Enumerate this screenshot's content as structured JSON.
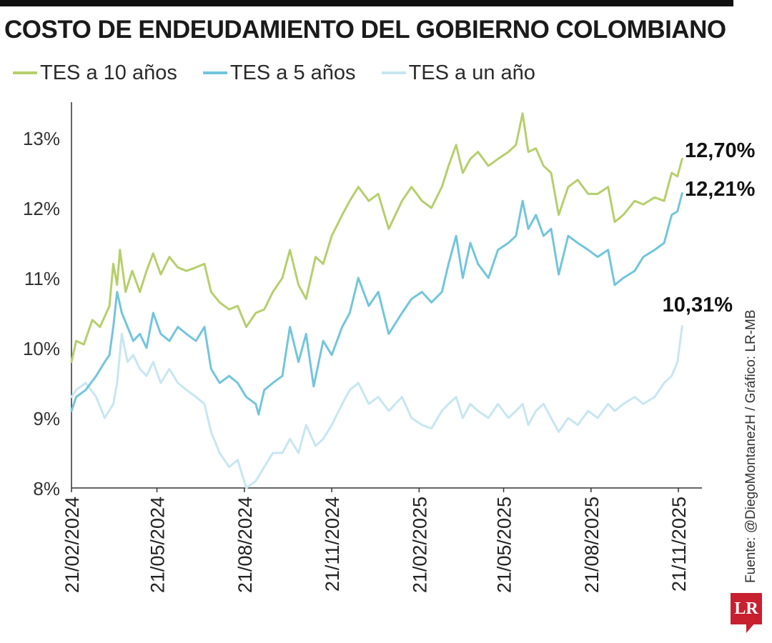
{
  "title": "COSTO DE ENDEUDAMIENTO DEL GOBIERNO COLOMBIANO",
  "source": "Fuente: @DiegoMontanezH / Gráfico: LR-MB",
  "logo_text": "LR",
  "colors": {
    "tes10": "#b5cf6b",
    "tes5": "#72c5dd",
    "tes1": "#c7e6f1",
    "axis": "#333333",
    "brand": "#c8202f"
  },
  "chart_data": {
    "type": "line",
    "title": "COSTO DE ENDEUDAMIENTO DEL GOBIERNO COLOMBIANO",
    "xlabel": "",
    "ylabel": "",
    "ylim": [
      8,
      13.5
    ],
    "y_ticks": [
      "8%",
      "9%",
      "10%",
      "11%",
      "12%",
      "13%"
    ],
    "y_tick_values": [
      8,
      9,
      10,
      11,
      12,
      13
    ],
    "x_ticks": [
      "21/02/2024",
      "21/05/2024",
      "21/08/2024",
      "21/11/2024",
      "21/02/2025",
      "21/05/2025",
      "21/08/2025",
      "21/11/2025"
    ],
    "xlim": [
      "2024-02-21",
      "2025-11-27"
    ],
    "grid": false,
    "legend_position": "top-left",
    "series": [
      {
        "name": "TES a 10 años",
        "end_label": "12,70%",
        "points": [
          [
            "2024-02-21",
            9.8
          ],
          [
            "2024-02-26",
            10.1
          ],
          [
            "2024-03-05",
            10.05
          ],
          [
            "2024-03-14",
            10.4
          ],
          [
            "2024-03-22",
            10.3
          ],
          [
            "2024-04-01",
            10.6
          ],
          [
            "2024-04-05",
            11.2
          ],
          [
            "2024-04-09",
            10.9
          ],
          [
            "2024-04-12",
            11.4
          ],
          [
            "2024-04-18",
            10.8
          ],
          [
            "2024-04-25",
            11.1
          ],
          [
            "2024-05-03",
            10.8
          ],
          [
            "2024-05-10",
            11.1
          ],
          [
            "2024-05-17",
            11.35
          ],
          [
            "2024-05-25",
            11.05
          ],
          [
            "2024-06-03",
            11.3
          ],
          [
            "2024-06-12",
            11.15
          ],
          [
            "2024-06-21",
            11.1
          ],
          [
            "2024-07-01",
            11.15
          ],
          [
            "2024-07-10",
            11.2
          ],
          [
            "2024-07-17",
            10.8
          ],
          [
            "2024-07-26",
            10.65
          ],
          [
            "2024-08-05",
            10.55
          ],
          [
            "2024-08-14",
            10.6
          ],
          [
            "2024-08-23",
            10.3
          ],
          [
            "2024-09-02",
            10.5
          ],
          [
            "2024-09-11",
            10.55
          ],
          [
            "2024-09-20",
            10.8
          ],
          [
            "2024-09-30",
            11.0
          ],
          [
            "2024-10-08",
            11.4
          ],
          [
            "2024-10-17",
            10.9
          ],
          [
            "2024-10-25",
            10.7
          ],
          [
            "2024-11-04",
            11.3
          ],
          [
            "2024-11-12",
            11.2
          ],
          [
            "2024-11-21",
            11.6
          ],
          [
            "2024-12-02",
            11.9
          ],
          [
            "2024-12-10",
            12.1
          ],
          [
            "2024-12-19",
            12.3
          ],
          [
            "2024-12-30",
            12.1
          ],
          [
            "2025-01-09",
            12.2
          ],
          [
            "2025-01-20",
            11.7
          ],
          [
            "2025-02-03",
            12.1
          ],
          [
            "2025-02-13",
            12.3
          ],
          [
            "2025-02-24",
            12.1
          ],
          [
            "2025-03-06",
            12.0
          ],
          [
            "2025-03-17",
            12.3
          ],
          [
            "2025-03-24",
            12.6
          ],
          [
            "2025-04-01",
            12.9
          ],
          [
            "2025-04-08",
            12.5
          ],
          [
            "2025-04-16",
            12.7
          ],
          [
            "2025-04-24",
            12.8
          ],
          [
            "2025-05-05",
            12.6
          ],
          [
            "2025-05-15",
            12.7
          ],
          [
            "2025-05-26",
            12.8
          ],
          [
            "2025-06-03",
            12.9
          ],
          [
            "2025-06-10",
            13.35
          ],
          [
            "2025-06-16",
            12.8
          ],
          [
            "2025-06-24",
            12.85
          ],
          [
            "2025-07-02",
            12.6
          ],
          [
            "2025-07-10",
            12.5
          ],
          [
            "2025-07-18",
            11.9
          ],
          [
            "2025-07-28",
            12.3
          ],
          [
            "2025-08-07",
            12.4
          ],
          [
            "2025-08-18",
            12.2
          ],
          [
            "2025-08-28",
            12.2
          ],
          [
            "2025-09-08",
            12.3
          ],
          [
            "2025-09-15",
            11.8
          ],
          [
            "2025-09-24",
            11.9
          ],
          [
            "2025-10-06",
            12.1
          ],
          [
            "2025-10-15",
            12.05
          ],
          [
            "2025-10-27",
            12.15
          ],
          [
            "2025-11-06",
            12.1
          ],
          [
            "2025-11-14",
            12.5
          ],
          [
            "2025-11-20",
            12.45
          ],
          [
            "2025-11-25",
            12.7
          ]
        ]
      },
      {
        "name": "TES a 5 años",
        "end_label": "12,21%",
        "points": [
          [
            "2024-02-21",
            9.1
          ],
          [
            "2024-02-26",
            9.3
          ],
          [
            "2024-03-07",
            9.4
          ],
          [
            "2024-03-18",
            9.6
          ],
          [
            "2024-03-27",
            9.8
          ],
          [
            "2024-04-01",
            9.9
          ],
          [
            "2024-04-05",
            10.3
          ],
          [
            "2024-04-09",
            10.8
          ],
          [
            "2024-04-14",
            10.5
          ],
          [
            "2024-04-20",
            10.3
          ],
          [
            "2024-04-26",
            10.1
          ],
          [
            "2024-05-03",
            10.2
          ],
          [
            "2024-05-10",
            10.0
          ],
          [
            "2024-05-17",
            10.5
          ],
          [
            "2024-05-25",
            10.2
          ],
          [
            "2024-06-03",
            10.1
          ],
          [
            "2024-06-12",
            10.3
          ],
          [
            "2024-06-21",
            10.2
          ],
          [
            "2024-07-01",
            10.1
          ],
          [
            "2024-07-10",
            10.3
          ],
          [
            "2024-07-17",
            9.7
          ],
          [
            "2024-07-26",
            9.5
          ],
          [
            "2024-08-05",
            9.6
          ],
          [
            "2024-08-14",
            9.5
          ],
          [
            "2024-08-23",
            9.3
          ],
          [
            "2024-09-02",
            9.2
          ],
          [
            "2024-09-05",
            9.05
          ],
          [
            "2024-09-11",
            9.4
          ],
          [
            "2024-09-20",
            9.5
          ],
          [
            "2024-09-30",
            9.6
          ],
          [
            "2024-10-08",
            10.3
          ],
          [
            "2024-10-17",
            9.8
          ],
          [
            "2024-10-25",
            10.2
          ],
          [
            "2024-11-02",
            9.45
          ],
          [
            "2024-11-12",
            10.1
          ],
          [
            "2024-11-21",
            9.9
          ],
          [
            "2024-12-02",
            10.3
          ],
          [
            "2024-12-10",
            10.5
          ],
          [
            "2024-12-19",
            11.0
          ],
          [
            "2024-12-30",
            10.6
          ],
          [
            "2025-01-09",
            10.8
          ],
          [
            "2025-01-20",
            10.2
          ],
          [
            "2025-02-03",
            10.5
          ],
          [
            "2025-02-13",
            10.7
          ],
          [
            "2025-02-24",
            10.8
          ],
          [
            "2025-03-06",
            10.65
          ],
          [
            "2025-03-17",
            10.8
          ],
          [
            "2025-03-24",
            11.2
          ],
          [
            "2025-04-01",
            11.6
          ],
          [
            "2025-04-08",
            11.0
          ],
          [
            "2025-04-16",
            11.5
          ],
          [
            "2025-04-24",
            11.2
          ],
          [
            "2025-05-05",
            11.0
          ],
          [
            "2025-05-15",
            11.4
          ],
          [
            "2025-05-26",
            11.5
          ],
          [
            "2025-06-03",
            11.6
          ],
          [
            "2025-06-10",
            12.1
          ],
          [
            "2025-06-16",
            11.7
          ],
          [
            "2025-06-24",
            11.9
          ],
          [
            "2025-07-02",
            11.6
          ],
          [
            "2025-07-10",
            11.7
          ],
          [
            "2025-07-18",
            11.05
          ],
          [
            "2025-07-28",
            11.6
          ],
          [
            "2025-08-07",
            11.5
          ],
          [
            "2025-08-18",
            11.4
          ],
          [
            "2025-08-28",
            11.3
          ],
          [
            "2025-09-08",
            11.4
          ],
          [
            "2025-09-15",
            10.9
          ],
          [
            "2025-09-24",
            11.0
          ],
          [
            "2025-10-06",
            11.1
          ],
          [
            "2025-10-15",
            11.3
          ],
          [
            "2025-10-27",
            11.4
          ],
          [
            "2025-11-06",
            11.5
          ],
          [
            "2025-11-14",
            11.9
          ],
          [
            "2025-11-20",
            11.95
          ],
          [
            "2025-11-25",
            12.21
          ]
        ]
      },
      {
        "name": "TES a un año",
        "end_label": "10,31%",
        "points": [
          [
            "2024-02-21",
            9.3
          ],
          [
            "2024-02-26",
            9.4
          ],
          [
            "2024-03-07",
            9.5
          ],
          [
            "2024-03-18",
            9.3
          ],
          [
            "2024-03-27",
            9.0
          ],
          [
            "2024-04-05",
            9.2
          ],
          [
            "2024-04-09",
            9.5
          ],
          [
            "2024-04-14",
            10.2
          ],
          [
            "2024-04-20",
            9.8
          ],
          [
            "2024-04-26",
            9.9
          ],
          [
            "2024-05-03",
            9.7
          ],
          [
            "2024-05-10",
            9.6
          ],
          [
            "2024-05-17",
            9.8
          ],
          [
            "2024-05-25",
            9.5
          ],
          [
            "2024-06-03",
            9.7
          ],
          [
            "2024-06-12",
            9.5
          ],
          [
            "2024-06-21",
            9.4
          ],
          [
            "2024-07-01",
            9.3
          ],
          [
            "2024-07-10",
            9.2
          ],
          [
            "2024-07-17",
            8.8
          ],
          [
            "2024-07-26",
            8.5
          ],
          [
            "2024-08-05",
            8.3
          ],
          [
            "2024-08-14",
            8.4
          ],
          [
            "2024-08-23",
            8.0
          ],
          [
            "2024-09-02",
            8.1
          ],
          [
            "2024-09-11",
            8.3
          ],
          [
            "2024-09-20",
            8.5
          ],
          [
            "2024-09-30",
            8.5
          ],
          [
            "2024-10-08",
            8.7
          ],
          [
            "2024-10-17",
            8.5
          ],
          [
            "2024-10-25",
            8.9
          ],
          [
            "2024-11-04",
            8.6
          ],
          [
            "2024-11-12",
            8.7
          ],
          [
            "2024-11-21",
            8.9
          ],
          [
            "2024-12-02",
            9.2
          ],
          [
            "2024-12-10",
            9.4
          ],
          [
            "2024-12-19",
            9.5
          ],
          [
            "2024-12-30",
            9.2
          ],
          [
            "2025-01-09",
            9.3
          ],
          [
            "2025-01-20",
            9.1
          ],
          [
            "2025-02-03",
            9.3
          ],
          [
            "2025-02-13",
            9.0
          ],
          [
            "2025-02-24",
            8.9
          ],
          [
            "2025-03-06",
            8.85
          ],
          [
            "2025-03-17",
            9.1
          ],
          [
            "2025-03-24",
            9.2
          ],
          [
            "2025-04-01",
            9.3
          ],
          [
            "2025-04-08",
            9.0
          ],
          [
            "2025-04-16",
            9.2
          ],
          [
            "2025-04-24",
            9.1
          ],
          [
            "2025-05-05",
            9.0
          ],
          [
            "2025-05-15",
            9.2
          ],
          [
            "2025-05-26",
            9.0
          ],
          [
            "2025-06-03",
            9.1
          ],
          [
            "2025-06-10",
            9.2
          ],
          [
            "2025-06-16",
            8.9
          ],
          [
            "2025-06-24",
            9.1
          ],
          [
            "2025-07-02",
            9.2
          ],
          [
            "2025-07-10",
            9.0
          ],
          [
            "2025-07-18",
            8.8
          ],
          [
            "2025-07-28",
            9.0
          ],
          [
            "2025-08-07",
            8.9
          ],
          [
            "2025-08-18",
            9.1
          ],
          [
            "2025-08-28",
            9.0
          ],
          [
            "2025-09-08",
            9.2
          ],
          [
            "2025-09-15",
            9.1
          ],
          [
            "2025-09-24",
            9.2
          ],
          [
            "2025-10-06",
            9.3
          ],
          [
            "2025-10-15",
            9.2
          ],
          [
            "2025-10-27",
            9.3
          ],
          [
            "2025-11-06",
            9.5
          ],
          [
            "2025-11-14",
            9.6
          ],
          [
            "2025-11-20",
            9.8
          ],
          [
            "2025-11-25",
            10.31
          ]
        ]
      }
    ]
  }
}
